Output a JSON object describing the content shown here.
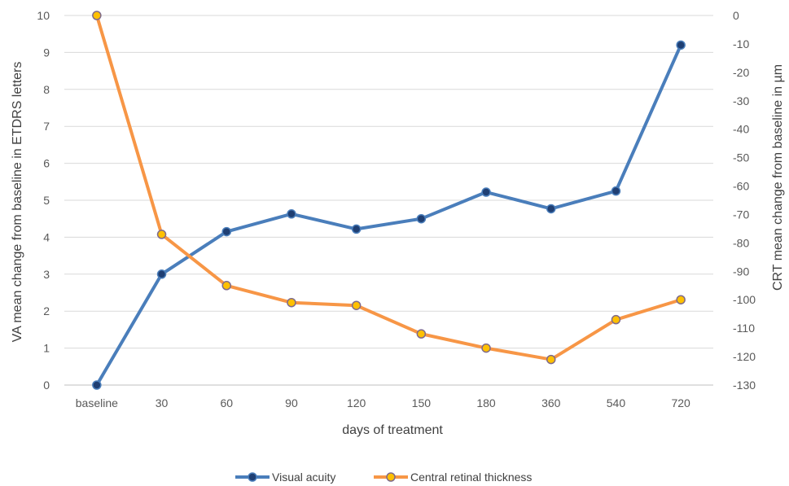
{
  "chart_data": {
    "type": "line",
    "title": "",
    "xlabel": "days of treatment",
    "ylabel": "VA mean change from baseline  in ETDRS letters",
    "y2label": "CRT mean change from baseline in µm",
    "categories": [
      "baseline",
      "30",
      "60",
      "90",
      "120",
      "150",
      "180",
      "360",
      "540",
      "720"
    ],
    "ylim": [
      0,
      10
    ],
    "y2lim": [
      -130,
      0
    ],
    "yticks": [
      "0",
      "1",
      "2",
      "3",
      "4",
      "5",
      "6",
      "7",
      "8",
      "9",
      "10"
    ],
    "y2ticks": [
      "0",
      "-10",
      "-20",
      "-30",
      "-40",
      "-50",
      "-60",
      "-70",
      "-80",
      "-90",
      "-100",
      "-110",
      "-120",
      "-130"
    ],
    "grid": true,
    "legend_position": "bottom",
    "series": [
      {
        "name": "Visual acuity",
        "axis": "left",
        "color": "#4a7ebb",
        "marker_fill": "#1f3f73",
        "values": [
          0,
          3.0,
          4.15,
          4.63,
          4.22,
          4.5,
          5.22,
          4.77,
          5.25,
          9.2
        ]
      },
      {
        "name": "Central retinal thickness",
        "axis": "right",
        "color": "#f79646",
        "marker_fill": "#ffc000",
        "values": [
          0,
          -77,
          -95,
          -101,
          -102,
          -112,
          -117,
          -121,
          -107,
          -100
        ]
      }
    ]
  }
}
